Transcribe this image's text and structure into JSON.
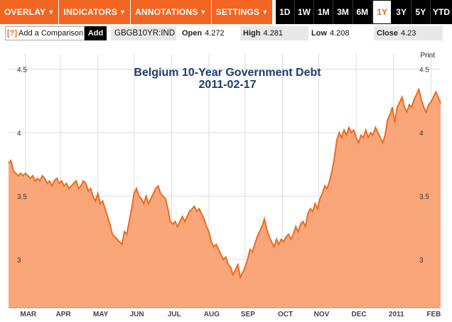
{
  "toolbar": {
    "menus": [
      {
        "label": "OVERLAY"
      },
      {
        "label": "INDICATORS"
      },
      {
        "label": "ANNOTATIONS"
      },
      {
        "label": "SETTINGS"
      }
    ],
    "ranges": [
      {
        "label": "1D",
        "active": false
      },
      {
        "label": "1W",
        "active": false
      },
      {
        "label": "1M",
        "active": false
      },
      {
        "label": "3M",
        "active": false
      },
      {
        "label": "6M",
        "active": false
      },
      {
        "label": "1Y",
        "active": true
      },
      {
        "label": "3Y",
        "active": false
      },
      {
        "label": "5Y",
        "active": false
      },
      {
        "label": "YTD",
        "active": false
      }
    ]
  },
  "infobar": {
    "help": "[?]",
    "compare_label": "Add a Comparison",
    "add_label": "Add",
    "symbol": "GBGB10YR:IND",
    "open_label": "Open",
    "open_value": "4.272",
    "high_label": "High",
    "high_value": "4.281",
    "low_label": "Low",
    "low_value": "4.208",
    "close_label": "Close",
    "close_value": "4.23"
  },
  "print_label": "Print",
  "colors": {
    "accent": "#f26522",
    "fill": "#f9a77a",
    "line": "#ef6a1c"
  },
  "chart_data": {
    "type": "area",
    "title": "Belgium 10-Year Government Debt",
    "subtitle": "2011-02-17",
    "y_ticks": [
      "4.5",
      "4",
      "3.5",
      "3"
    ],
    "ylim": [
      2.62,
      4.62
    ],
    "x_labels": [
      "MAR",
      "APR",
      "MAY",
      "JUN",
      "JUL",
      "AUG",
      "SEP",
      "OCT",
      "NOV",
      "DEC",
      "2011",
      "FEB"
    ],
    "x_label_days": [
      14,
      43,
      74,
      104,
      135,
      166,
      196,
      227,
      257,
      288,
      319,
      350
    ],
    "x_range_days": [
      0,
      358
    ],
    "grid": true,
    "points": [
      [
        0,
        3.76
      ],
      [
        2,
        3.78
      ],
      [
        4,
        3.7
      ],
      [
        6,
        3.68
      ],
      [
        8,
        3.66
      ],
      [
        10,
        3.68
      ],
      [
        12,
        3.66
      ],
      [
        14,
        3.68
      ],
      [
        16,
        3.66
      ],
      [
        18,
        3.64
      ],
      [
        20,
        3.66
      ],
      [
        22,
        3.62
      ],
      [
        24,
        3.64
      ],
      [
        26,
        3.62
      ],
      [
        28,
        3.66
      ],
      [
        30,
        3.64
      ],
      [
        32,
        3.6
      ],
      [
        34,
        3.62
      ],
      [
        36,
        3.58
      ],
      [
        38,
        3.62
      ],
      [
        40,
        3.64
      ],
      [
        42,
        3.6
      ],
      [
        44,
        3.62
      ],
      [
        46,
        3.58
      ],
      [
        48,
        3.6
      ],
      [
        50,
        3.56
      ],
      [
        52,
        3.58
      ],
      [
        54,
        3.6
      ],
      [
        56,
        3.62
      ],
      [
        58,
        3.56
      ],
      [
        60,
        3.58
      ],
      [
        62,
        3.62
      ],
      [
        64,
        3.6
      ],
      [
        66,
        3.54
      ],
      [
        68,
        3.56
      ],
      [
        70,
        3.5
      ],
      [
        72,
        3.46
      ],
      [
        74,
        3.52
      ],
      [
        76,
        3.44
      ],
      [
        78,
        3.46
      ],
      [
        80,
        3.4
      ],
      [
        82,
        3.34
      ],
      [
        84,
        3.28
      ],
      [
        86,
        3.2
      ],
      [
        88,
        3.18
      ],
      [
        90,
        3.16
      ],
      [
        92,
        3.14
      ],
      [
        94,
        3.12
      ],
      [
        96,
        3.22
      ],
      [
        98,
        3.2
      ],
      [
        100,
        3.3
      ],
      [
        102,
        3.4
      ],
      [
        104,
        3.52
      ],
      [
        106,
        3.56
      ],
      [
        108,
        3.5
      ],
      [
        110,
        3.48
      ],
      [
        112,
        3.44
      ],
      [
        114,
        3.5
      ],
      [
        116,
        3.44
      ],
      [
        118,
        3.48
      ],
      [
        120,
        3.52
      ],
      [
        122,
        3.56
      ],
      [
        124,
        3.58
      ],
      [
        126,
        3.52
      ],
      [
        128,
        3.5
      ],
      [
        130,
        3.48
      ],
      [
        132,
        3.4
      ],
      [
        134,
        3.3
      ],
      [
        136,
        3.28
      ],
      [
        138,
        3.3
      ],
      [
        140,
        3.26
      ],
      [
        142,
        3.3
      ],
      [
        144,
        3.34
      ],
      [
        146,
        3.3
      ],
      [
        148,
        3.34
      ],
      [
        150,
        3.38
      ],
      [
        152,
        3.4
      ],
      [
        154,
        3.42
      ],
      [
        156,
        3.38
      ],
      [
        158,
        3.4
      ],
      [
        160,
        3.36
      ],
      [
        162,
        3.32
      ],
      [
        164,
        3.26
      ],
      [
        166,
        3.22
      ],
      [
        168,
        3.14
      ],
      [
        170,
        3.1
      ],
      [
        172,
        3.12
      ],
      [
        174,
        3.08
      ],
      [
        176,
        3.04
      ],
      [
        178,
        3.0
      ],
      [
        180,
        3.02
      ],
      [
        182,
        2.96
      ],
      [
        184,
        2.94
      ],
      [
        186,
        2.88
      ],
      [
        188,
        2.92
      ],
      [
        190,
        2.96
      ],
      [
        192,
        2.86
      ],
      [
        194,
        2.9
      ],
      [
        196,
        2.94
      ],
      [
        198,
        3.0
      ],
      [
        200,
        3.08
      ],
      [
        202,
        3.06
      ],
      [
        204,
        3.12
      ],
      [
        206,
        3.18
      ],
      [
        208,
        3.22
      ],
      [
        210,
        3.26
      ],
      [
        212,
        3.32
      ],
      [
        214,
        3.24
      ],
      [
        216,
        3.18
      ],
      [
        218,
        3.14
      ],
      [
        220,
        3.1
      ],
      [
        222,
        3.16
      ],
      [
        224,
        3.12
      ],
      [
        226,
        3.16
      ],
      [
        228,
        3.14
      ],
      [
        230,
        3.18
      ],
      [
        232,
        3.2
      ],
      [
        234,
        3.16
      ],
      [
        236,
        3.2
      ],
      [
        238,
        3.26
      ],
      [
        240,
        3.22
      ],
      [
        242,
        3.28
      ],
      [
        244,
        3.3
      ],
      [
        246,
        3.26
      ],
      [
        248,
        3.36
      ],
      [
        250,
        3.4
      ],
      [
        252,
        3.38
      ],
      [
        254,
        3.44
      ],
      [
        256,
        3.4
      ],
      [
        258,
        3.48
      ],
      [
        260,
        3.52
      ],
      [
        262,
        3.58
      ],
      [
        264,
        3.56
      ],
      [
        266,
        3.62
      ],
      [
        268,
        3.7
      ],
      [
        270,
        3.8
      ],
      [
        272,
        3.94
      ],
      [
        274,
        4.0
      ],
      [
        276,
        3.96
      ],
      [
        278,
        4.02
      ],
      [
        280,
        3.98
      ],
      [
        282,
        4.04
      ],
      [
        284,
        4.0
      ],
      [
        286,
        4.02
      ],
      [
        288,
        3.96
      ],
      [
        290,
        3.92
      ],
      [
        292,
        3.98
      ],
      [
        294,
        3.96
      ],
      [
        296,
        4.02
      ],
      [
        298,
        3.96
      ],
      [
        300,
        4.0
      ],
      [
        302,
        3.98
      ],
      [
        304,
        4.04
      ],
      [
        306,
        4.0
      ],
      [
        308,
        3.96
      ],
      [
        310,
        3.92
      ],
      [
        312,
        3.98
      ],
      [
        314,
        4.1
      ],
      [
        316,
        4.14
      ],
      [
        318,
        4.2
      ],
      [
        320,
        4.08
      ],
      [
        322,
        4.2
      ],
      [
        324,
        4.24
      ],
      [
        326,
        4.28
      ],
      [
        328,
        4.2
      ],
      [
        330,
        4.16
      ],
      [
        332,
        4.22
      ],
      [
        334,
        4.2
      ],
      [
        336,
        4.26
      ],
      [
        338,
        4.3
      ],
      [
        340,
        4.34
      ],
      [
        342,
        4.26
      ],
      [
        344,
        4.2
      ],
      [
        346,
        4.16
      ],
      [
        348,
        4.22
      ],
      [
        350,
        4.24
      ],
      [
        352,
        4.28
      ],
      [
        354,
        4.32
      ],
      [
        356,
        4.28
      ],
      [
        358,
        4.23
      ]
    ]
  }
}
